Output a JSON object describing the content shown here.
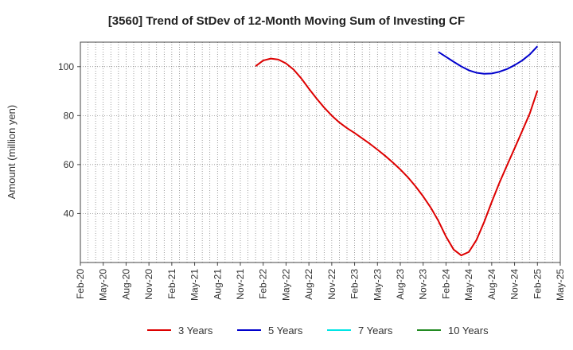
{
  "chart_data": {
    "type": "line",
    "title": "[3560]  Trend of StDev of 12-Month Moving Sum of Investing CF",
    "ylabel": "Amount (million yen)",
    "xlabel": "",
    "ylim": [
      20,
      110
    ],
    "y_ticks": [
      40,
      60,
      80,
      100
    ],
    "x_tick_labels": [
      "Feb-20",
      "May-20",
      "Aug-20",
      "Nov-20",
      "Feb-21",
      "May-21",
      "Aug-21",
      "Nov-21",
      "Feb-22",
      "May-22",
      "Aug-22",
      "Nov-22",
      "Feb-23",
      "May-23",
      "Aug-23",
      "Nov-23",
      "Feb-24",
      "May-24",
      "Aug-24",
      "Nov-24",
      "Feb-25",
      "May-25"
    ],
    "grid": true,
    "legend_position": "bottom",
    "series": [
      {
        "name": "3 Years",
        "color": "#dd0000",
        "points": [
          [
            "Jan-22",
            100.2
          ],
          [
            "Feb-22",
            102.5
          ],
          [
            "Mar-22",
            103.3
          ],
          [
            "Apr-22",
            102.9
          ],
          [
            "May-22",
            101.3
          ],
          [
            "Jun-22",
            98.8
          ],
          [
            "Jul-22",
            95.2
          ],
          [
            "Aug-22",
            91.0
          ],
          [
            "Sep-22",
            87.0
          ],
          [
            "Oct-22",
            83.3
          ],
          [
            "Nov-22",
            80.0
          ],
          [
            "Dec-22",
            77.2
          ],
          [
            "Jan-23",
            74.9
          ],
          [
            "Feb-23",
            72.9
          ],
          [
            "Mar-23",
            70.7
          ],
          [
            "Apr-23",
            68.5
          ],
          [
            "May-23",
            66.1
          ],
          [
            "Jun-23",
            63.6
          ],
          [
            "Jul-23",
            60.9
          ],
          [
            "Aug-23",
            58.0
          ],
          [
            "Sep-23",
            54.8
          ],
          [
            "Oct-23",
            51.1
          ],
          [
            "Nov-23",
            47.0
          ],
          [
            "Dec-23",
            42.4
          ],
          [
            "Jan-24",
            37.0
          ],
          [
            "Feb-24",
            30.6
          ],
          [
            "Mar-24",
            25.3
          ],
          [
            "Apr-24",
            22.9
          ],
          [
            "May-24",
            24.3
          ],
          [
            "Jun-24",
            29.2
          ],
          [
            "Jul-24",
            36.5
          ],
          [
            "Aug-24",
            44.7
          ],
          [
            "Sep-24",
            52.5
          ],
          [
            "Oct-24",
            59.6
          ],
          [
            "Nov-24",
            66.6
          ],
          [
            "Dec-24",
            73.7
          ],
          [
            "Jan-25",
            80.9
          ],
          [
            "Feb-25",
            90.2
          ]
        ]
      },
      {
        "name": "5 Years",
        "color": "#0000cc",
        "points": [
          [
            "Jan-24",
            106.0
          ],
          [
            "Feb-24",
            104.0
          ],
          [
            "Mar-24",
            102.0
          ],
          [
            "Apr-24",
            100.1
          ],
          [
            "May-24",
            98.5
          ],
          [
            "Jun-24",
            97.5
          ],
          [
            "Jul-24",
            97.1
          ],
          [
            "Aug-24",
            97.2
          ],
          [
            "Sep-24",
            97.9
          ],
          [
            "Oct-24",
            99.0
          ],
          [
            "Nov-24",
            100.6
          ],
          [
            "Dec-24",
            102.5
          ],
          [
            "Jan-25",
            105.0
          ],
          [
            "Feb-25",
            108.3
          ]
        ]
      },
      {
        "name": "7 Years",
        "color": "#00e5e5",
        "points": []
      },
      {
        "name": "10 Years",
        "color": "#228b22",
        "points": []
      }
    ]
  }
}
